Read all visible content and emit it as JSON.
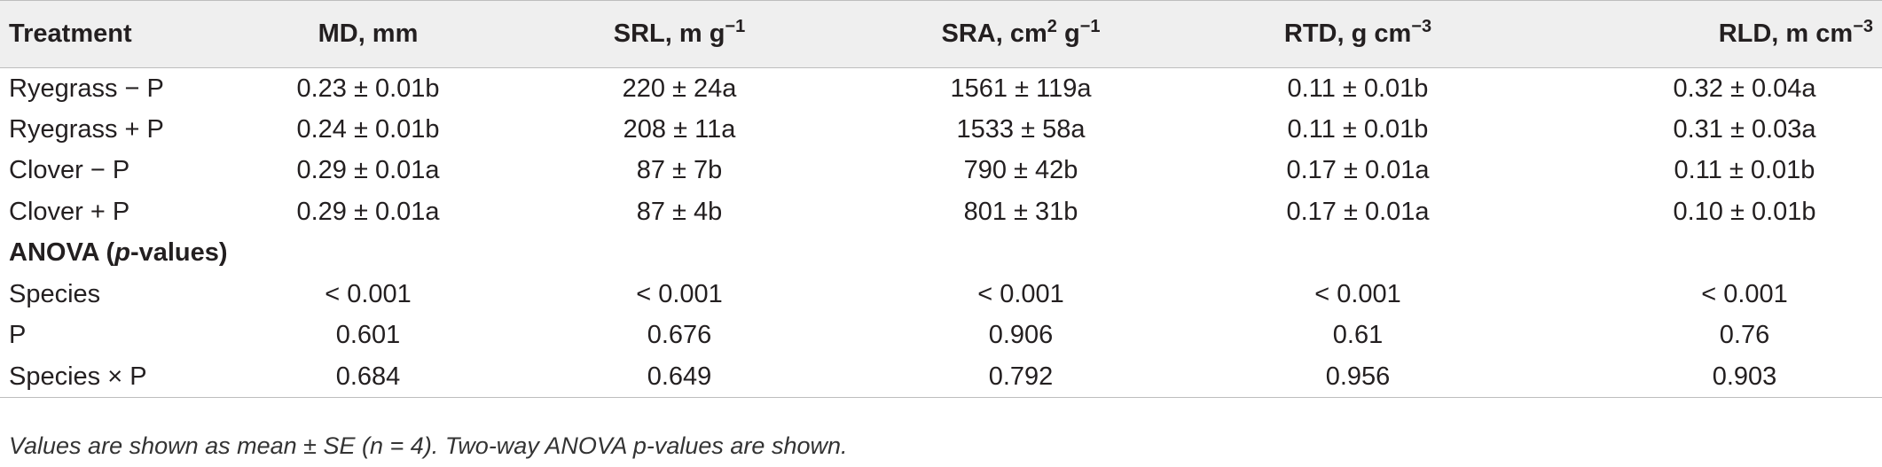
{
  "table": {
    "headers": {
      "treatment": "Treatment",
      "md": "MD, mm",
      "srl_main": "SRL, m g",
      "srl_sup": "−1",
      "sra_main": "SRA, cm",
      "sra_sup1": "2",
      "sra_mid": " g",
      "sra_sup2": "−1",
      "rtd_main": "RTD, g cm",
      "rtd_sup": "−3",
      "rld_main": "RLD, m cm",
      "rld_sup": "−3"
    },
    "rows": [
      {
        "treatment": "Ryegrass − P",
        "md": "0.23 ± 0.01b",
        "srl": "220 ± 24a",
        "sra": "1561 ± 119a",
        "rtd": "0.11 ± 0.01b",
        "rld": "0.32 ± 0.04a"
      },
      {
        "treatment": "Ryegrass + P",
        "md": "0.24 ± 0.01b",
        "srl": "208 ± 11a",
        "sra": "1533 ± 58a",
        "rtd": "0.11 ± 0.01b",
        "rld": "0.31 ± 0.03a"
      },
      {
        "treatment": "Clover − P",
        "md": "0.29 ± 0.01a",
        "srl": "87 ± 7b",
        "sra": "790 ± 42b",
        "rtd": "0.17 ± 0.01a",
        "rld": "0.11 ± 0.01b"
      },
      {
        "treatment": "Clover + P",
        "md": "0.29 ± 0.01a",
        "srl": "87 ± 4b",
        "sra": "801 ± 31b",
        "rtd": "0.17 ± 0.01a",
        "rld": "0.10 ± 0.01b"
      }
    ],
    "anova_heading_pre": "ANOVA (",
    "anova_heading_italic": "p",
    "anova_heading_post": "-values)",
    "anova_rows": [
      {
        "treatment": "Species",
        "md": "< 0.001",
        "srl": "< 0.001",
        "sra": "< 0.001",
        "rtd": "< 0.001",
        "rld": "< 0.001"
      },
      {
        "treatment": "P",
        "md": "0.601",
        "srl": "0.676",
        "sra": "0.906",
        "rtd": "0.61",
        "rld": "0.76"
      },
      {
        "treatment": "Species × P",
        "md": "0.684",
        "srl": "0.649",
        "sra": "0.792",
        "rtd": "0.956",
        "rld": "0.903"
      }
    ]
  },
  "footnote": "Values are shown as mean ± SE (n = 4). Two-way ANOVA p-values are shown."
}
